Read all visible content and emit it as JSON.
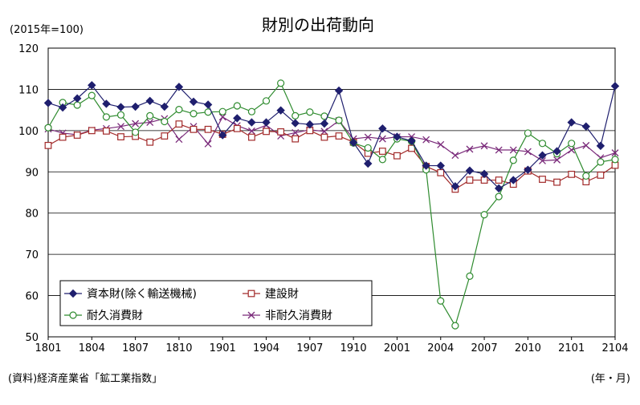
{
  "chart_data": {
    "type": "line",
    "title": "財別の出荷動向",
    "unit_label": "(2015年=100)",
    "source_note": "(資料)経済産業省「鉱工業指数」",
    "x_unit_label": "(年・月)",
    "ylim": [
      50,
      120
    ],
    "y_ticks": [
      "50",
      "60",
      "70",
      "80",
      "90",
      "100",
      "110",
      "120"
    ],
    "x_tick_labels": [
      "1801",
      "1804",
      "1807",
      "1810",
      "1901",
      "1904",
      "1907",
      "1910",
      "2001",
      "2004",
      "2007",
      "2010",
      "2101",
      "2104"
    ],
    "grid": "horizontal",
    "legend_position": "bottom-left",
    "x": [
      "1801",
      "1802",
      "1803",
      "1804",
      "1805",
      "1806",
      "1807",
      "1808",
      "1809",
      "1810",
      "1811",
      "1812",
      "1901",
      "1902",
      "1903",
      "1904",
      "1905",
      "1906",
      "1907",
      "1908",
      "1909",
      "1910",
      "1911",
      "1912",
      "2001",
      "2002",
      "2003",
      "2004",
      "2005",
      "2006",
      "2007",
      "2008",
      "2009",
      "2010",
      "2011",
      "2012",
      "2101",
      "2102",
      "2103",
      "2104"
    ],
    "series": [
      {
        "name": "資本財(除く輸送機械)",
        "color": "#1f1f6e",
        "marker": "diamond",
        "values": [
          106.7,
          105.6,
          107.8,
          111.0,
          106.5,
          105.7,
          105.8,
          107.2,
          105.8,
          110.6,
          107.0,
          106.3,
          98.9,
          103.0,
          102.0,
          102.0,
          104.9,
          101.8,
          101.5,
          101.7,
          109.7,
          97.1,
          92.0,
          100.5,
          98.5,
          97.5,
          91.5,
          91.5,
          86.5,
          90.3,
          89.5,
          86.0,
          88.0,
          90.5,
          94.0,
          95.0,
          102.0,
          101.0,
          96.3,
          110.8
        ]
      },
      {
        "name": "建設財",
        "color": "#a22a2a",
        "marker": "square",
        "values": [
          96.4,
          98.4,
          98.9,
          100.0,
          99.9,
          98.5,
          98.6,
          97.2,
          98.7,
          101.6,
          100.3,
          100.3,
          99.1,
          100.5,
          98.4,
          99.8,
          99.7,
          98.0,
          100.0,
          98.4,
          98.7,
          97.2,
          94.5,
          95.0,
          93.9,
          95.7,
          91.3,
          89.8,
          85.8,
          88.0,
          88.0,
          88.0,
          87.0,
          90.2,
          88.2,
          87.5,
          89.4,
          87.6,
          89.2,
          91.6
        ]
      },
      {
        "name": "耐久消費財",
        "color": "#2e8b2e",
        "marker": "circle",
        "values": [
          100.7,
          106.8,
          106.2,
          108.5,
          103.3,
          103.8,
          99.6,
          103.6,
          102.2,
          105.1,
          104.1,
          104.5,
          104.6,
          106.0,
          104.6,
          107.2,
          111.5,
          103.6,
          104.5,
          103.5,
          102.5,
          97.0,
          95.8,
          93.0,
          98.0,
          97.4,
          90.5,
          58.7,
          52.7,
          64.7,
          79.6,
          84.0,
          92.8,
          99.4,
          96.9,
          94.4,
          96.9,
          89.0,
          92.4,
          93.0
        ]
      },
      {
        "name": "非耐久消費財",
        "color": "#7a2a7a",
        "marker": "x",
        "values": [
          100.4,
          99.4,
          99.0,
          100.1,
          100.5,
          101.0,
          101.7,
          102.0,
          102.9,
          97.9,
          101.0,
          96.8,
          103.3,
          101.2,
          99.9,
          101.3,
          98.7,
          99.5,
          100.2,
          99.8,
          102.4,
          98.0,
          98.4,
          98.0,
          98.5,
          98.5,
          97.8,
          96.6,
          94.0,
          95.5,
          96.3,
          95.3,
          95.3,
          94.9,
          92.7,
          92.9,
          95.3,
          96.4,
          93.4,
          94.6
        ]
      }
    ]
  }
}
